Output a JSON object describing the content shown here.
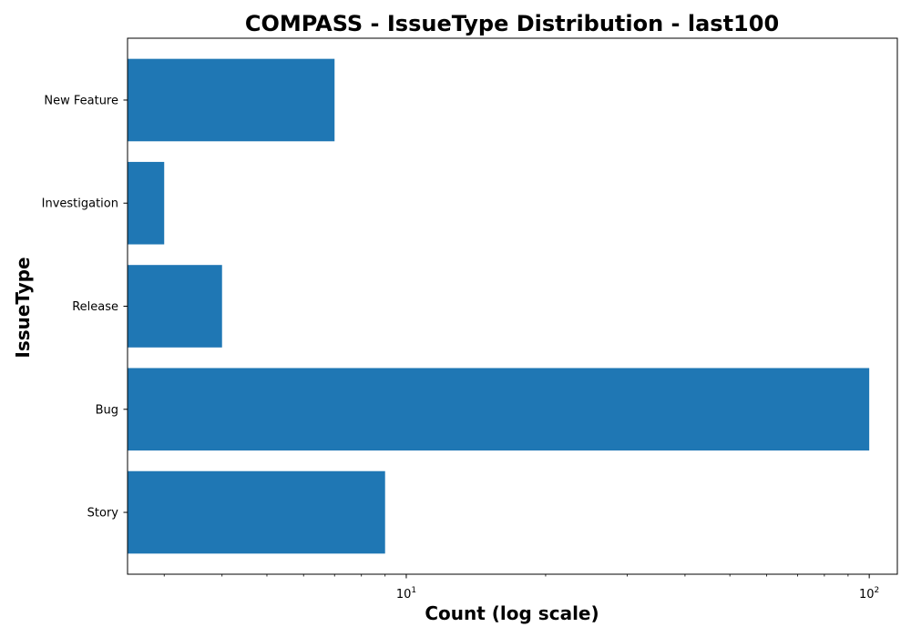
{
  "chart_data": {
    "type": "bar",
    "orientation": "horizontal",
    "title": "COMPASS - IssueType Distribution - last100",
    "xlabel": "Count (log scale)",
    "ylabel": "IssueType",
    "x_scale": "log",
    "xlim": [
      2.5,
      115
    ],
    "categories": [
      "Story",
      "Bug",
      "Release",
      "Investigation",
      "New Feature"
    ],
    "values": [
      9,
      100,
      4,
      3,
      7
    ],
    "x_ticks": [
      {
        "base": "10",
        "exp": "1",
        "value": 10
      },
      {
        "base": "10",
        "exp": "2",
        "value": 100
      }
    ],
    "bar_color": "#1f77b4",
    "grid": false,
    "legend": false
  }
}
